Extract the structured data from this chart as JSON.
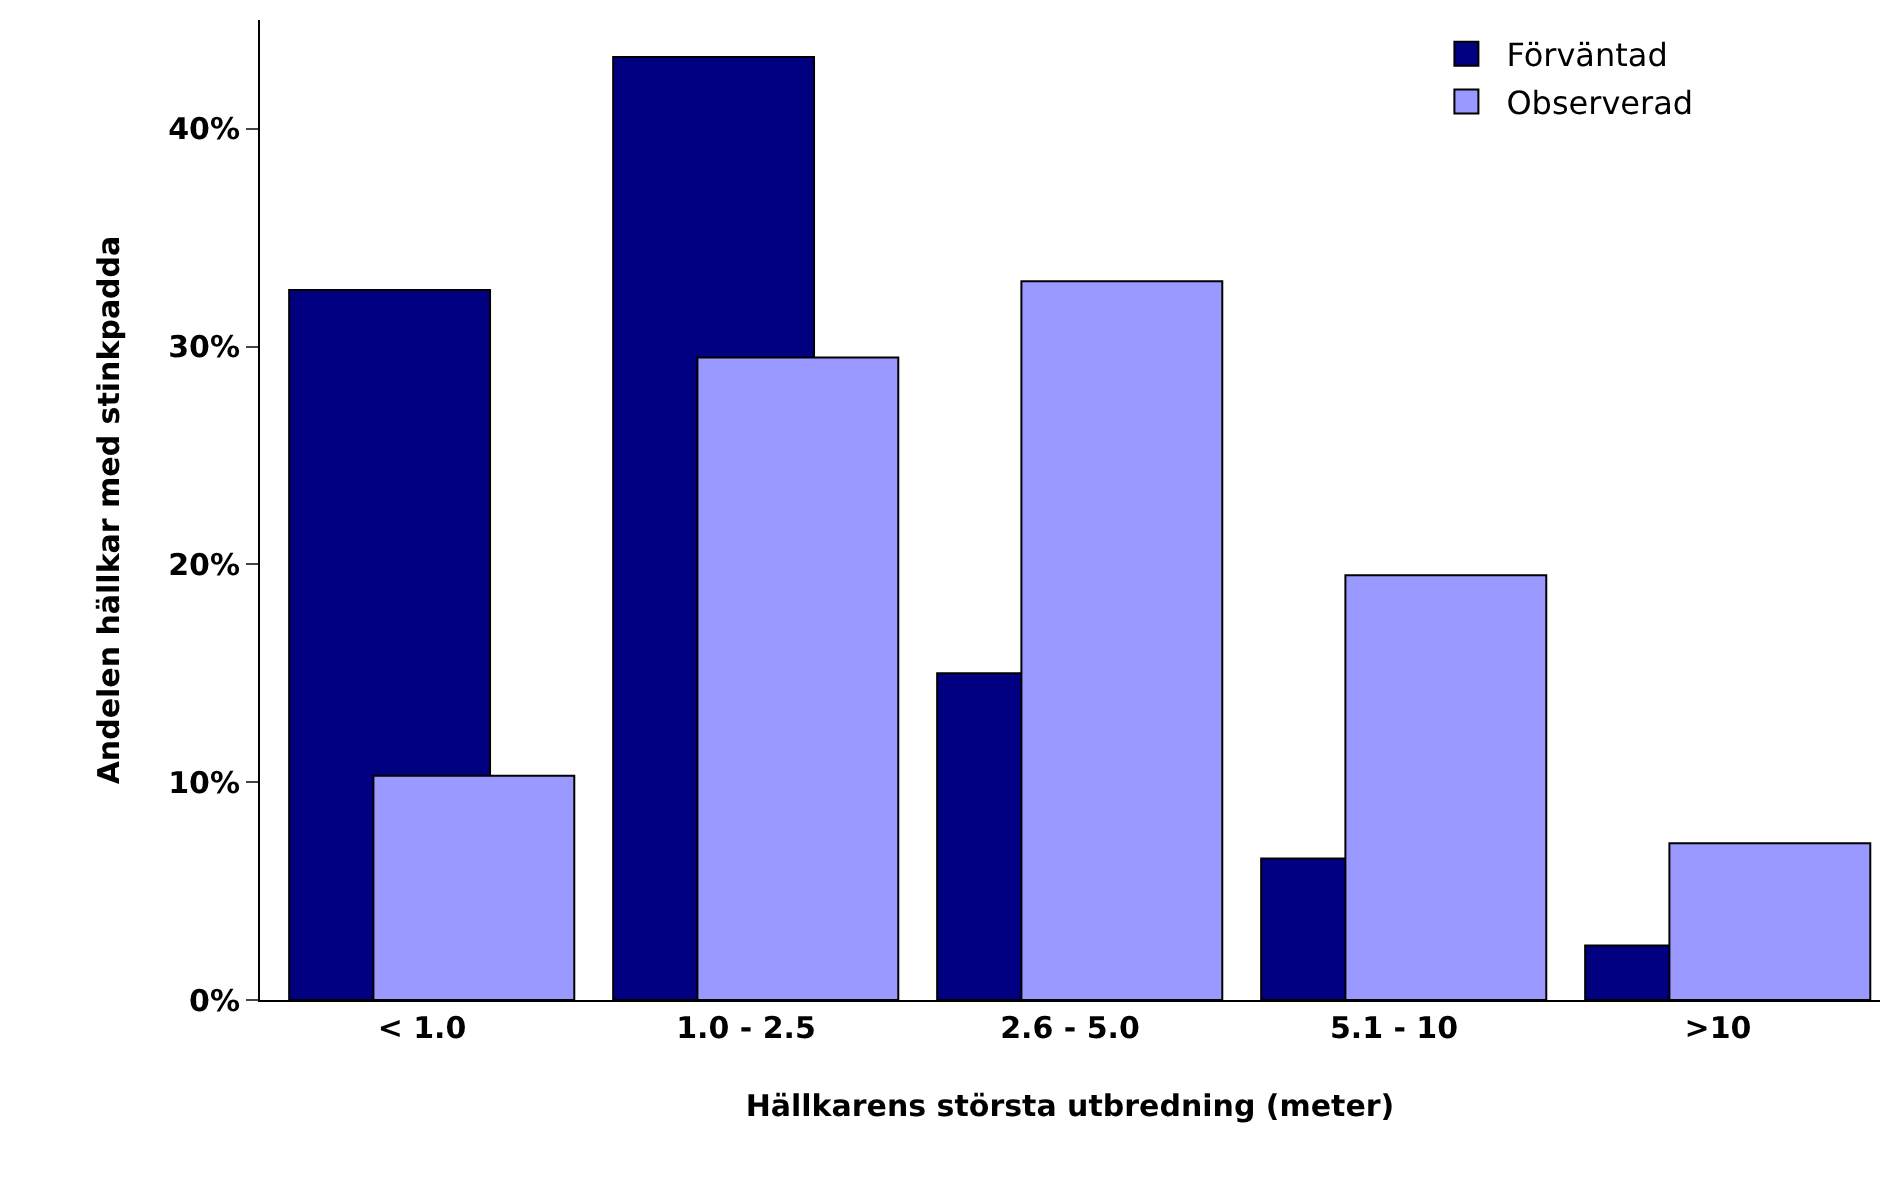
{
  "chart_data": {
    "type": "bar",
    "xlabel": "Hällkarens största utbredning (meter)",
    "ylabel": "Andelen hällkar med stinkpadda",
    "categories": [
      "< 1.0",
      "1.0 - 2.5",
      "2.6 - 5.0",
      "5.1 - 10",
      ">10"
    ],
    "series": [
      {
        "name": "Förväntad",
        "color": "#000080",
        "values": [
          32.6,
          43.3,
          15.0,
          6.5,
          2.5
        ]
      },
      {
        "name": "Observerad",
        "color": "#9999ff",
        "values": [
          10.3,
          29.5,
          33.0,
          19.5,
          7.2
        ]
      }
    ],
    "ylim": [
      0,
      45
    ],
    "yticks": [
      {
        "value": 0,
        "label": "0%"
      },
      {
        "value": 10,
        "label": "10%"
      },
      {
        "value": 20,
        "label": "20%"
      },
      {
        "value": 30,
        "label": "30%"
      },
      {
        "value": 40,
        "label": "40%"
      }
    ],
    "grid": false,
    "legend": "top right"
  }
}
